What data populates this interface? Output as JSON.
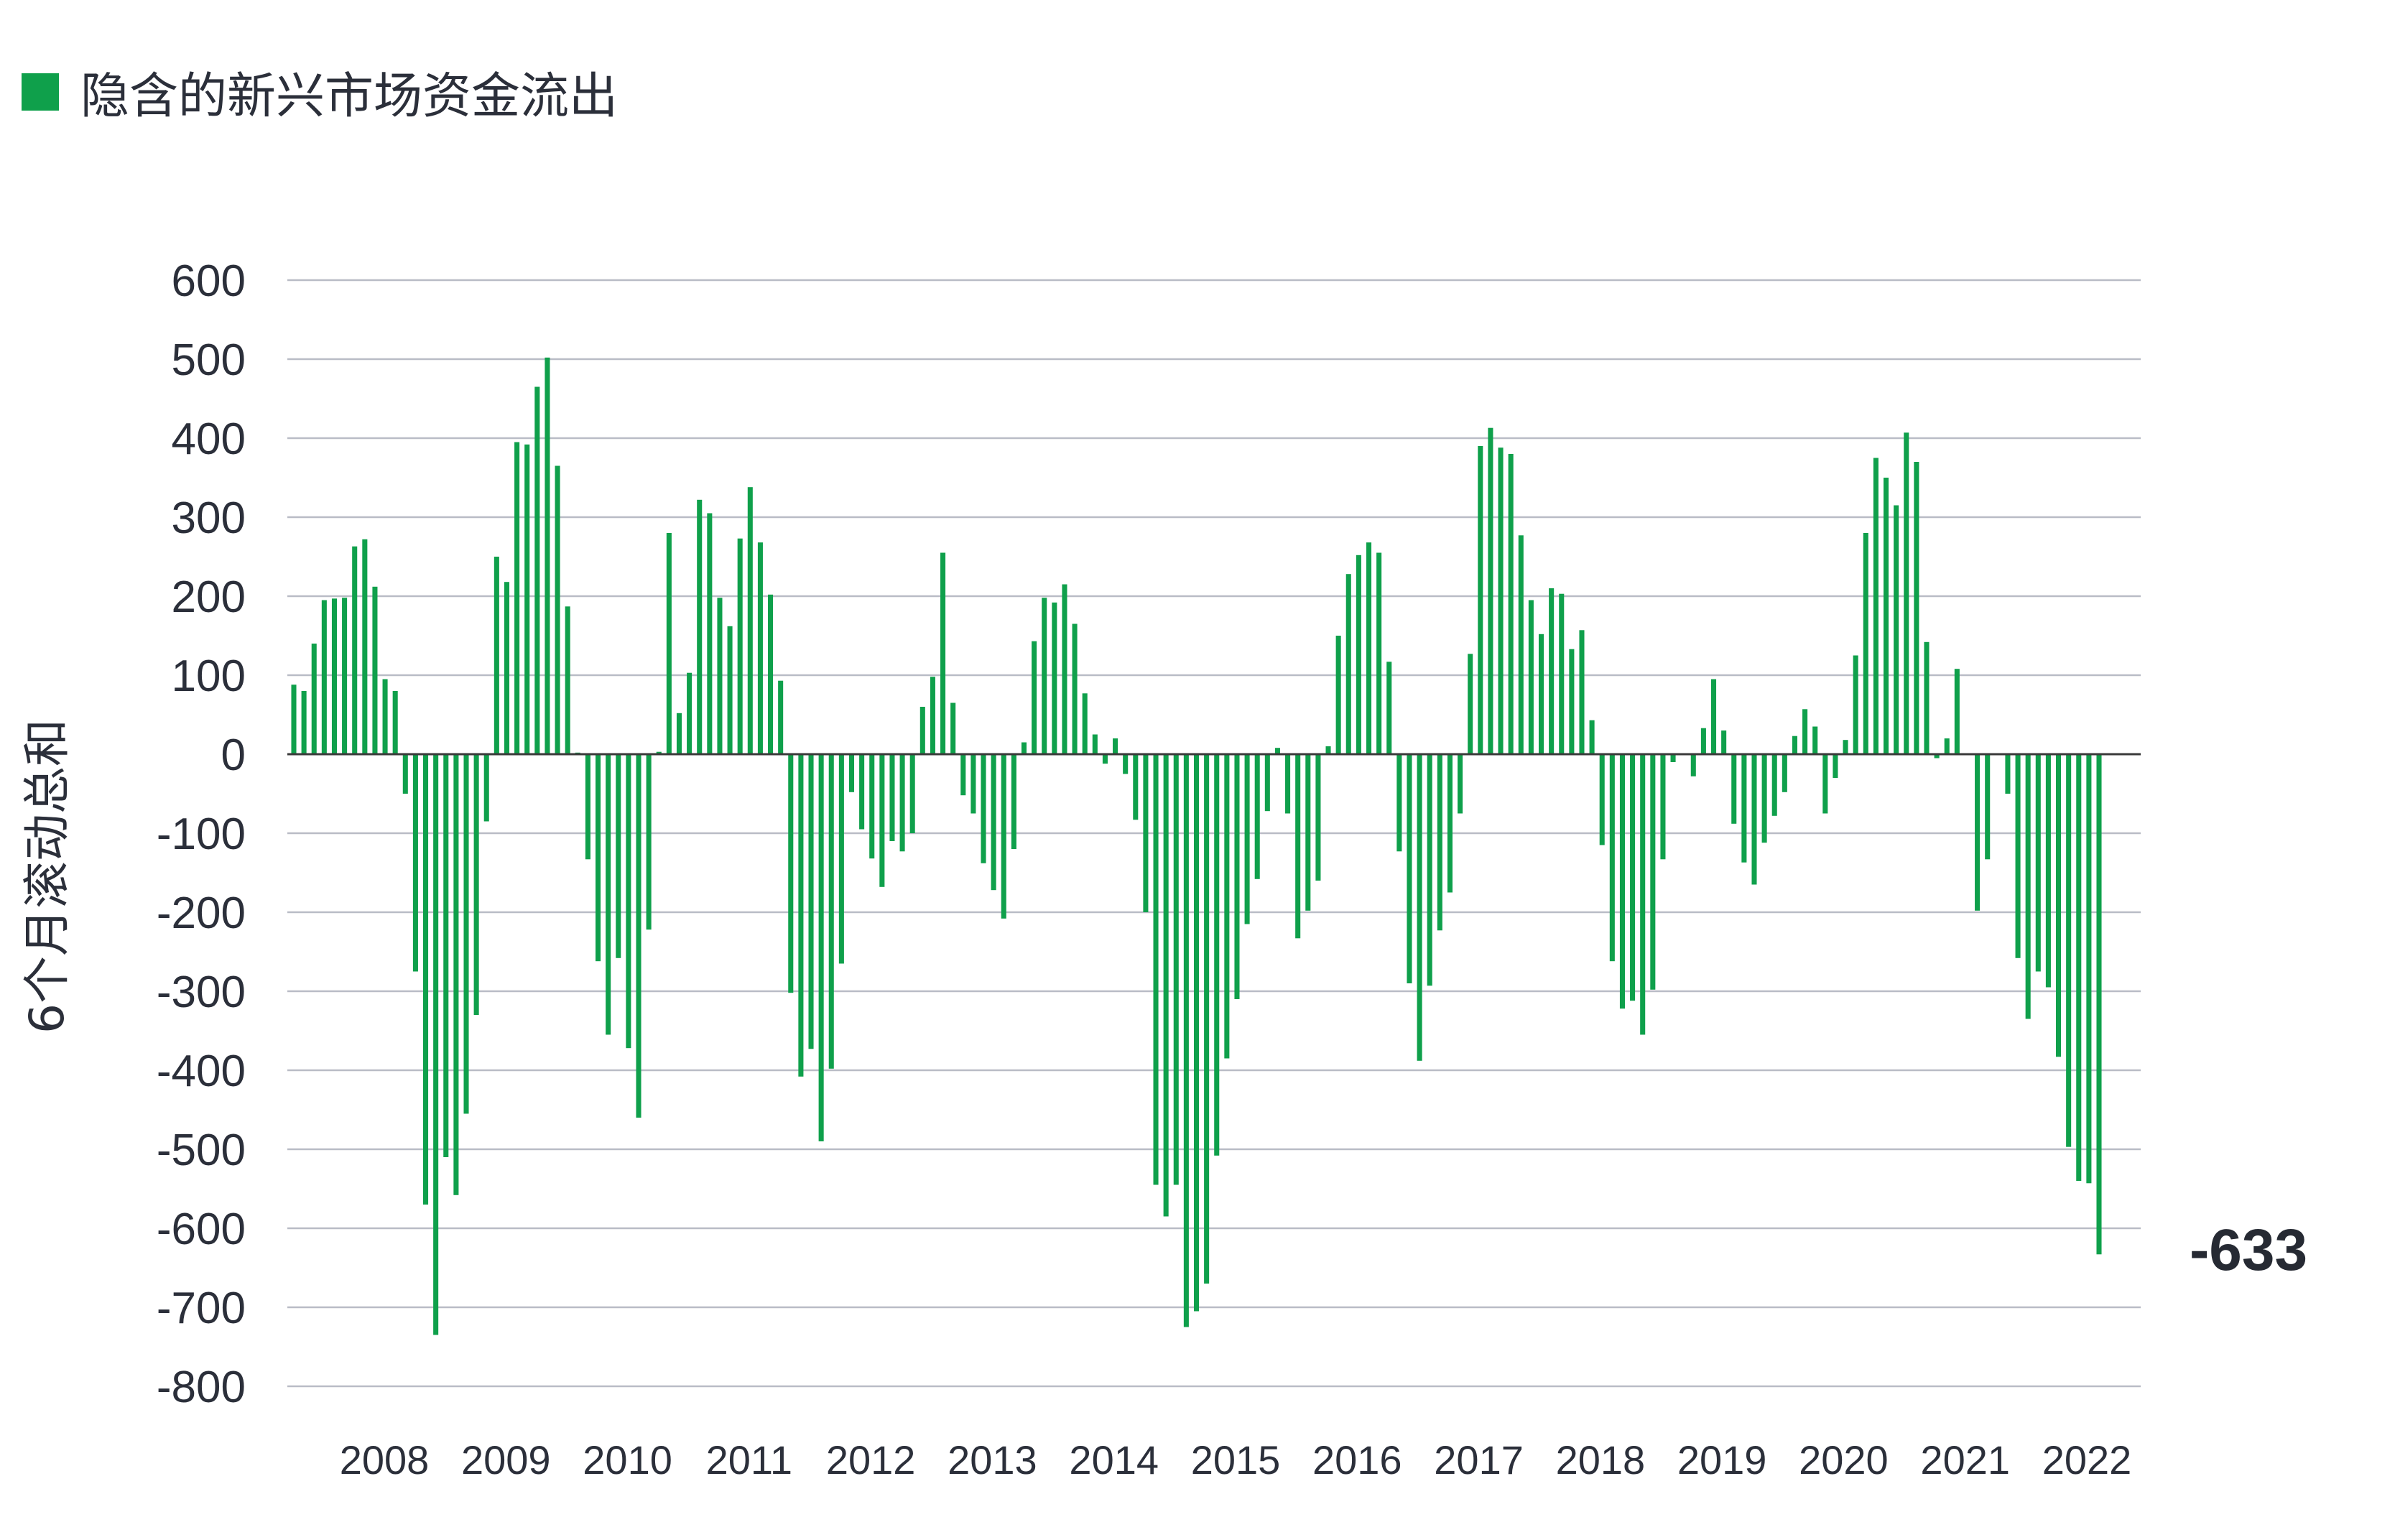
{
  "legend": {
    "label": "隐含的新兴市场资金流出",
    "color": "#0fa04b"
  },
  "chart_data": {
    "type": "bar",
    "title": "",
    "xlabel": "",
    "ylabel": "6个月滚动总和",
    "ylim": [
      -800,
      600
    ],
    "yticks": [
      600,
      500,
      400,
      300,
      200,
      100,
      0,
      -100,
      -200,
      -300,
      -400,
      -500,
      -600,
      -700,
      -800
    ],
    "xticks": [
      "2008",
      "2009",
      "2010",
      "2011",
      "2012",
      "2013",
      "2014",
      "2015",
      "2016",
      "2017",
      "2018",
      "2019",
      "2020",
      "2021",
      "2022"
    ],
    "grid": true,
    "legend_position": "top-left",
    "bar_color": "#0fa04b",
    "series": [
      {
        "name": "隐含的新兴市场资金流出",
        "values": [
          88,
          80,
          140,
          195,
          197,
          198,
          263,
          272,
          212,
          95,
          80,
          -50,
          -275,
          -570,
          -735,
          -510,
          -558,
          -455,
          -330,
          -85,
          250,
          218,
          395,
          392,
          465,
          502,
          365,
          187,
          2,
          -133,
          -262,
          -355,
          -258,
          -372,
          -460,
          -222,
          3,
          280,
          52,
          103,
          322,
          305,
          198,
          162,
          273,
          338,
          268,
          202,
          93,
          -302,
          -408,
          -373,
          -490,
          -398,
          -265,
          -48,
          -95,
          -132,
          -168,
          -110,
          -123,
          -100,
          60,
          98,
          255,
          65,
          -52,
          -75,
          -138,
          -172,
          -208,
          -120,
          15,
          143,
          198,
          192,
          215,
          165,
          77,
          25,
          -12,
          20,
          -25,
          -83,
          -200,
          -545,
          -585,
          -545,
          -725,
          -705,
          -670,
          -508,
          -385,
          -310,
          -215,
          -158,
          -72,
          8,
          -75,
          -233,
          -198,
          -160,
          10,
          150,
          228,
          252,
          268,
          255,
          117,
          -123,
          -290,
          -388,
          -293,
          -223,
          -175,
          -75,
          127,
          390,
          413,
          388,
          380,
          277,
          195,
          152,
          210,
          203,
          133,
          157,
          43,
          -115,
          -262,
          -322,
          -312,
          -355,
          -298,
          -133,
          -10,
          0,
          -28,
          33,
          95,
          30,
          -88,
          -137,
          -165,
          -112,
          -78,
          -48,
          23,
          57,
          35,
          -75,
          -30,
          18,
          125,
          280,
          375,
          350,
          315,
          407,
          370,
          142,
          -5,
          20,
          108,
          0,
          -198,
          -133,
          0,
          -50,
          -258,
          -335,
          -275,
          -295,
          -383,
          -497,
          -540,
          -543,
          -633
        ]
      }
    ],
    "last_value_label": "-633"
  }
}
